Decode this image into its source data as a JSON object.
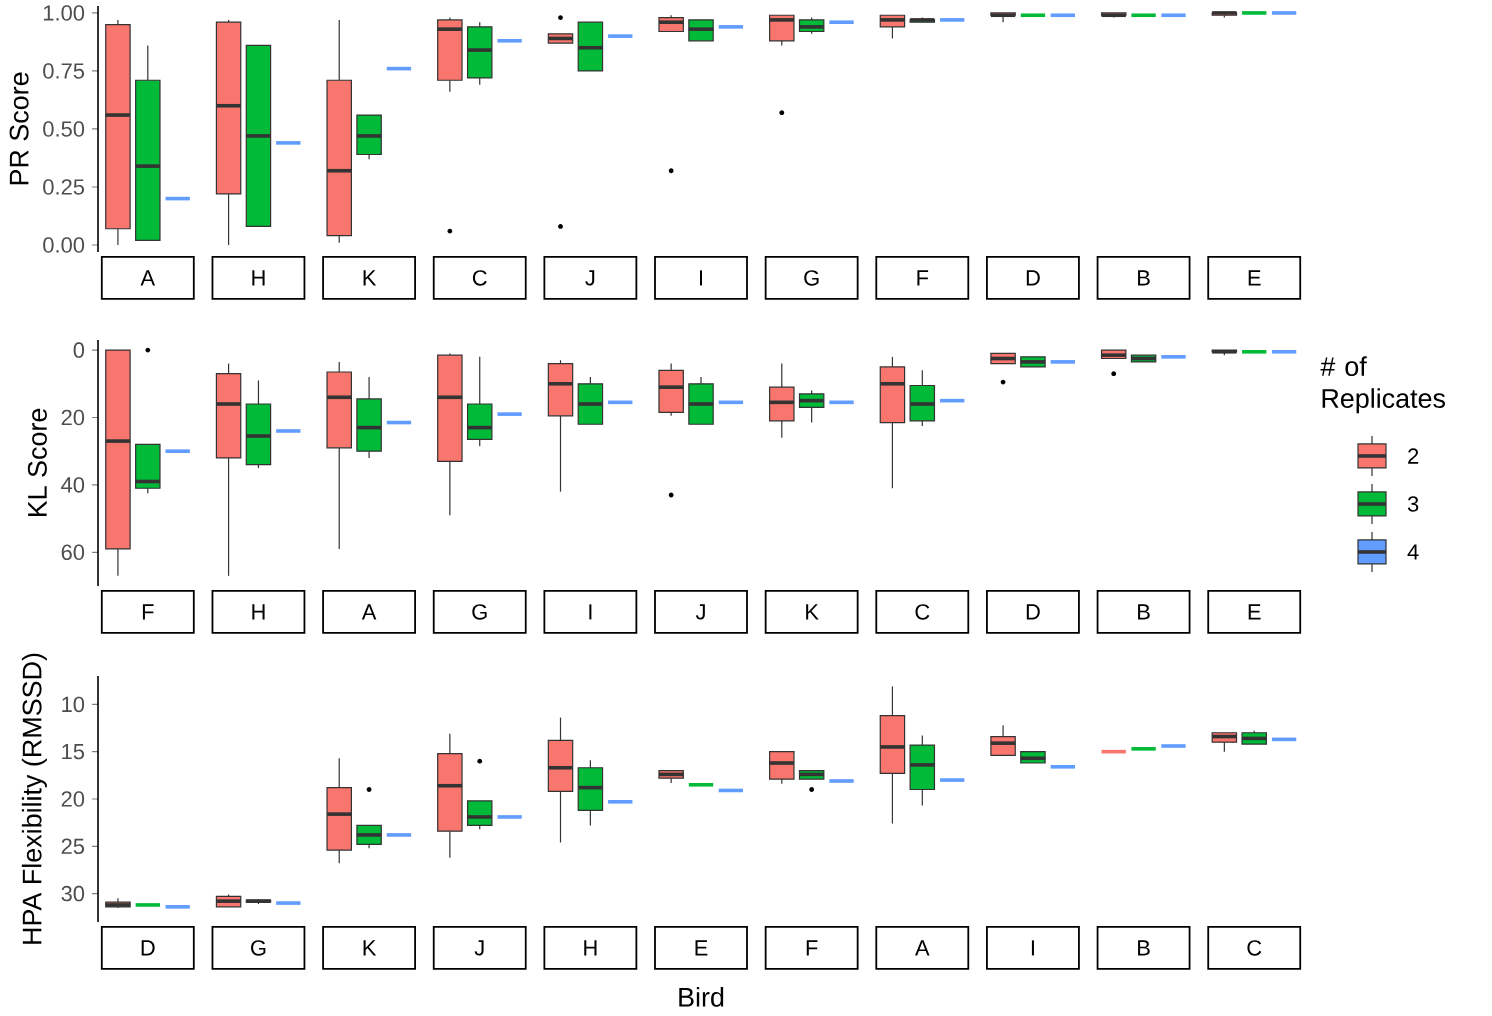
{
  "chart_data": [
    {
      "type": "box",
      "ylabel": "PR Score",
      "categories": [
        "A",
        "H",
        "K",
        "C",
        "J",
        "I",
        "G",
        "F",
        "D",
        "B",
        "E"
      ],
      "ylim": [
        -0.03,
        1.03
      ],
      "yticks": [
        {
          "value": 0,
          "label": "0.00"
        },
        {
          "value": 0.25,
          "label": "0.25"
        },
        {
          "value": 0.5,
          "label": "0.50"
        },
        {
          "value": 0.75,
          "label": "0.75"
        },
        {
          "value": 1,
          "label": "1.00"
        }
      ],
      "series": [
        {
          "color": "#f8766d",
          "boxes": [
            {
              "low": 0,
              "q1": 0.07,
              "median": 0.56,
              "q3": 0.95,
              "high": 0.97
            },
            {
              "low": 0,
              "q1": 0.22,
              "median": 0.6,
              "q3": 0.96,
              "high": 0.97
            },
            {
              "low": 0.01,
              "q1": 0.04,
              "median": 0.32,
              "q3": 0.71,
              "high": 0.97
            },
            {
              "low": 0.66,
              "q1": 0.71,
              "median": 0.93,
              "q3": 0.97,
              "high": 0.98,
              "outliers": [
                0.06
              ]
            },
            {
              "low": 0.87,
              "q1": 0.87,
              "median": 0.89,
              "q3": 0.91,
              "high": 0.91,
              "outliers": [
                0.98,
                0.08
              ]
            },
            {
              "low": 0.92,
              "q1": 0.92,
              "median": 0.96,
              "q3": 0.98,
              "high": 0.99,
              "outliers": [
                0.32
              ]
            },
            {
              "low": 0.86,
              "q1": 0.88,
              "median": 0.97,
              "q3": 0.99,
              "high": 0.99,
              "outliers": [
                0.57
              ]
            },
            {
              "low": 0.89,
              "q1": 0.94,
              "median": 0.97,
              "q3": 0.99,
              "high": 0.99
            },
            {
              "low": 0.96,
              "q1": 0.99,
              "median": 0.99,
              "q3": 1.0,
              "high": 1.0
            },
            {
              "low": 0.98,
              "q1": 0.99,
              "median": 0.99,
              "q3": 1.0,
              "high": 1.0
            },
            {
              "low": 0.98,
              "q1": 0.99,
              "median": 1.0,
              "q3": 1.0,
              "high": 1.0
            }
          ]
        },
        {
          "color": "#00ba38",
          "boxes": [
            {
              "low": 0.02,
              "q1": 0.02,
              "median": 0.34,
              "q3": 0.71,
              "high": 0.86
            },
            {
              "low": 0.08,
              "q1": 0.08,
              "median": 0.47,
              "q3": 0.86,
              "high": 0.86
            },
            {
              "low": 0.37,
              "q1": 0.39,
              "median": 0.47,
              "q3": 0.56,
              "high": 0.56
            },
            {
              "low": 0.69,
              "q1": 0.72,
              "median": 0.84,
              "q3": 0.94,
              "high": 0.96
            },
            {
              "low": 0.75,
              "q1": 0.75,
              "median": 0.85,
              "q3": 0.96,
              "high": 0.96
            },
            {
              "low": 0.88,
              "q1": 0.88,
              "median": 0.93,
              "q3": 0.97,
              "high": 0.97
            },
            {
              "low": 0.91,
              "q1": 0.92,
              "median": 0.94,
              "q3": 0.97,
              "high": 0.98
            },
            {
              "low": 0.96,
              "q1": 0.96,
              "median": 0.97,
              "q3": 0.97,
              "high": 0.98
            },
            {
              "low": 0.99,
              "q1": 0.99,
              "median": 0.99,
              "q3": 0.99,
              "high": 0.99
            },
            {
              "low": 0.99,
              "q1": 0.99,
              "median": 0.99,
              "q3": 0.99,
              "high": 0.99
            },
            {
              "low": 1.0,
              "q1": 1.0,
              "median": 1.0,
              "q3": 1.0,
              "high": 1.0
            }
          ]
        },
        {
          "color": "#619cff",
          "boxes": [
            {
              "low": 0.2,
              "q1": 0.2,
              "median": 0.2,
              "q3": 0.2,
              "high": 0.2
            },
            {
              "low": 0.44,
              "q1": 0.44,
              "median": 0.44,
              "q3": 0.44,
              "high": 0.44
            },
            {
              "low": 0.76,
              "q1": 0.76,
              "median": 0.76,
              "q3": 0.76,
              "high": 0.76
            },
            {
              "low": 0.88,
              "q1": 0.88,
              "median": 0.88,
              "q3": 0.88,
              "high": 0.88
            },
            {
              "low": 0.9,
              "q1": 0.9,
              "median": 0.9,
              "q3": 0.9,
              "high": 0.9
            },
            {
              "low": 0.94,
              "q1": 0.94,
              "median": 0.94,
              "q3": 0.94,
              "high": 0.94
            },
            {
              "low": 0.96,
              "q1": 0.96,
              "median": 0.96,
              "q3": 0.96,
              "high": 0.96
            },
            {
              "low": 0.97,
              "q1": 0.97,
              "median": 0.97,
              "q3": 0.97,
              "high": 0.97
            },
            {
              "low": 0.99,
              "q1": 0.99,
              "median": 0.99,
              "q3": 0.99,
              "high": 0.99
            },
            {
              "low": 0.99,
              "q1": 0.99,
              "median": 0.99,
              "q3": 0.99,
              "high": 0.99
            },
            {
              "low": 1.0,
              "q1": 1.0,
              "median": 1.0,
              "q3": 1.0,
              "high": 1.0
            }
          ]
        }
      ]
    },
    {
      "type": "box",
      "ylabel": "KL Score",
      "legend": "right",
      "legend_title": "# of Replicates",
      "categories": [
        "F",
        "H",
        "A",
        "G",
        "I",
        "J",
        "K",
        "C",
        "D",
        "B",
        "E"
      ],
      "ylim": [
        70,
        -3
      ],
      "yticks": [
        0,
        20,
        40,
        60
      ],
      "series": [
        {
          "name": "2",
          "color": "#f8766d",
          "boxes": [
            {
              "low": 0,
              "q1": 0,
              "median": 27,
              "q3": 59,
              "high": 67
            },
            {
              "low": 4,
              "q1": 7,
              "median": 16,
              "q3": 32,
              "high": 67
            },
            {
              "low": 3.5,
              "q1": 6.5,
              "median": 14,
              "q3": 29,
              "high": 59
            },
            {
              "low": 1,
              "q1": 1.5,
              "median": 14,
              "q3": 33,
              "high": 49
            },
            {
              "low": 3,
              "q1": 4,
              "median": 10,
              "q3": 19.5,
              "high": 42
            },
            {
              "low": 4,
              "q1": 6,
              "median": 11,
              "q3": 18.5,
              "high": 19.5,
              "outliers": [
                43
              ]
            },
            {
              "low": 4,
              "q1": 11,
              "median": 15.5,
              "q3": 21,
              "high": 26
            },
            {
              "low": 2,
              "q1": 5,
              "median": 10,
              "q3": 21.5,
              "high": 41
            },
            {
              "low": 1,
              "q1": 1,
              "median": 2.5,
              "q3": 4,
              "high": 4,
              "outliers": [
                9.5
              ]
            },
            {
              "low": 0,
              "q1": 0,
              "median": 1.5,
              "q3": 2.5,
              "high": 2.5,
              "outliers": [
                7
              ]
            },
            {
              "low": 0,
              "q1": 0,
              "median": 0.5,
              "q3": 0.5,
              "high": 1.5
            }
          ]
        },
        {
          "name": "3",
          "color": "#00ba38",
          "boxes": [
            {
              "low": 28,
              "q1": 28,
              "median": 39,
              "q3": 41,
              "high": 42.5,
              "outliers": [
                0
              ]
            },
            {
              "low": 9,
              "q1": 16,
              "median": 25.5,
              "q3": 34,
              "high": 35
            },
            {
              "low": 8,
              "q1": 14.5,
              "median": 23,
              "q3": 30,
              "high": 32
            },
            {
              "low": 2,
              "q1": 16,
              "median": 23,
              "q3": 26.5,
              "high": 28.5
            },
            {
              "low": 8,
              "q1": 10,
              "median": 16,
              "q3": 22,
              "high": 22
            },
            {
              "low": 8,
              "q1": 10,
              "median": 16,
              "q3": 22,
              "high": 22
            },
            {
              "low": 12,
              "q1": 13,
              "median": 15,
              "q3": 17,
              "high": 21.5
            },
            {
              "low": 6,
              "q1": 10.5,
              "median": 16,
              "q3": 21,
              "high": 22.5
            },
            {
              "low": 2,
              "q1": 2,
              "median": 3.5,
              "q3": 5,
              "high": 5
            },
            {
              "low": 1.5,
              "q1": 1.5,
              "median": 2.5,
              "q3": 3.5,
              "high": 3.5
            },
            {
              "low": 0.5,
              "q1": 0.5,
              "median": 0.5,
              "q3": 0.5,
              "high": 0.5
            }
          ]
        },
        {
          "name": "4",
          "color": "#619cff",
          "boxes": [
            {
              "low": 30,
              "q1": 30,
              "median": 30,
              "q3": 30,
              "high": 30
            },
            {
              "low": 24,
              "q1": 24,
              "median": 24,
              "q3": 24,
              "high": 24
            },
            {
              "low": 21.5,
              "q1": 21.5,
              "median": 21.5,
              "q3": 21.5,
              "high": 21.5
            },
            {
              "low": 19,
              "q1": 19,
              "median": 19,
              "q3": 19,
              "high": 19
            },
            {
              "low": 15.5,
              "q1": 15.5,
              "median": 15.5,
              "q3": 15.5,
              "high": 15.5
            },
            {
              "low": 15.5,
              "q1": 15.5,
              "median": 15.5,
              "q3": 15.5,
              "high": 15.5
            },
            {
              "low": 15.5,
              "q1": 15.5,
              "median": 15.5,
              "q3": 15.5,
              "high": 15.5
            },
            {
              "low": 15,
              "q1": 15,
              "median": 15,
              "q3": 15,
              "high": 15
            },
            {
              "low": 3.5,
              "q1": 3.5,
              "median": 3.5,
              "q3": 3.5,
              "high": 3.5
            },
            {
              "low": 2,
              "q1": 2,
              "median": 2,
              "q3": 2,
              "high": 2
            },
            {
              "low": 0.5,
              "q1": 0.5,
              "median": 0.5,
              "q3": 0.5,
              "high": 0.5
            }
          ]
        }
      ]
    },
    {
      "type": "box",
      "ylabel": "HPA Flexibility (RMSSD)",
      "xlabel": "Bird",
      "categories": [
        "D",
        "G",
        "K",
        "J",
        "H",
        "E",
        "F",
        "A",
        "I",
        "B",
        "C"
      ],
      "ylim": [
        33,
        7
      ],
      "yticks": [
        10,
        15,
        20,
        25,
        30
      ],
      "series": [
        {
          "color": "#f8766d",
          "boxes": [
            {
              "low": 30.5,
              "q1": 30.9,
              "median": 31.2,
              "q3": 31.4,
              "high": 31.5
            },
            {
              "low": 30.1,
              "q1": 30.3,
              "median": 30.8,
              "q3": 31.4,
              "high": 31.4
            },
            {
              "low": 15.7,
              "q1": 18.8,
              "median": 21.6,
              "q3": 25.4,
              "high": 26.8
            },
            {
              "low": 13.1,
              "q1": 15.2,
              "median": 18.6,
              "q3": 23.4,
              "high": 26.2
            },
            {
              "low": 11.4,
              "q1": 13.8,
              "median": 16.7,
              "q3": 19.2,
              "high": 24.6
            },
            {
              "low": 17,
              "q1": 17,
              "median": 17.4,
              "q3": 17.8,
              "high": 18.3
            },
            {
              "low": 15,
              "q1": 15,
              "median": 16.2,
              "q3": 17.9,
              "high": 18.4
            },
            {
              "low": 8.1,
              "q1": 11.2,
              "median": 14.5,
              "q3": 17.3,
              "high": 22.6
            },
            {
              "low": 12.2,
              "q1": 13.4,
              "median": 14.1,
              "q3": 15.4,
              "high": 15.4
            },
            {
              "low": 15,
              "q1": 15,
              "median": 15,
              "q3": 15,
              "high": 15
            },
            {
              "low": 13,
              "q1": 13,
              "median": 13.4,
              "q3": 14,
              "high": 15
            }
          ]
        },
        {
          "color": "#00ba38",
          "boxes": [
            {
              "low": 31.2,
              "q1": 31.2,
              "median": 31.2,
              "q3": 31.2,
              "high": 31.2
            },
            {
              "low": 30.6,
              "q1": 30.7,
              "median": 30.8,
              "q3": 30.9,
              "high": 31.1
            },
            {
              "low": 22.8,
              "q1": 22.8,
              "median": 23.8,
              "q3": 24.8,
              "high": 25.2,
              "outliers": [
                19
              ]
            },
            {
              "low": 20.2,
              "q1": 20.2,
              "median": 21.9,
              "q3": 22.8,
              "high": 23.2,
              "outliers": [
                16
              ]
            },
            {
              "low": 15.9,
              "q1": 16.7,
              "median": 18.8,
              "q3": 21.2,
              "high": 22.8
            },
            {
              "low": 18.5,
              "q1": 18.5,
              "median": 18.5,
              "q3": 18.5,
              "high": 18.5
            },
            {
              "low": 17,
              "q1": 17,
              "median": 17.4,
              "q3": 17.9,
              "high": 17.9,
              "outliers": [
                19
              ]
            },
            {
              "low": 13.3,
              "q1": 14.3,
              "median": 16.4,
              "q3": 19,
              "high": 20.7
            },
            {
              "low": 15,
              "q1": 15,
              "median": 15.7,
              "q3": 16.2,
              "high": 16.2
            },
            {
              "low": 14.7,
              "q1": 14.7,
              "median": 14.7,
              "q3": 14.7,
              "high": 14.7
            },
            {
              "low": 12.8,
              "q1": 13,
              "median": 13.6,
              "q3": 14.2,
              "high": 14.2
            }
          ]
        },
        {
          "color": "#619cff",
          "boxes": [
            {
              "low": 31.4,
              "q1": 31.4,
              "median": 31.4,
              "q3": 31.4,
              "high": 31.4
            },
            {
              "low": 31,
              "q1": 31,
              "median": 31,
              "q3": 31,
              "high": 31
            },
            {
              "low": 23.8,
              "q1": 23.8,
              "median": 23.8,
              "q3": 23.8,
              "high": 23.8
            },
            {
              "low": 21.9,
              "q1": 21.9,
              "median": 21.9,
              "q3": 21.9,
              "high": 21.9
            },
            {
              "low": 20.3,
              "q1": 20.3,
              "median": 20.3,
              "q3": 20.3,
              "high": 20.3
            },
            {
              "low": 19.1,
              "q1": 19.1,
              "median": 19.1,
              "q3": 19.1,
              "high": 19.1
            },
            {
              "low": 18.1,
              "q1": 18.1,
              "median": 18.1,
              "q3": 18.1,
              "high": 18.1
            },
            {
              "low": 18,
              "q1": 18,
              "median": 18,
              "q3": 18,
              "high": 18
            },
            {
              "low": 16.6,
              "q1": 16.6,
              "median": 16.6,
              "q3": 16.6,
              "high": 16.6
            },
            {
              "low": 14.4,
              "q1": 14.4,
              "median": 14.4,
              "q3": 14.4,
              "high": 14.4
            },
            {
              "low": 13.7,
              "q1": 13.7,
              "median": 13.7,
              "q3": 13.7,
              "high": 13.7
            }
          ]
        }
      ]
    }
  ]
}
